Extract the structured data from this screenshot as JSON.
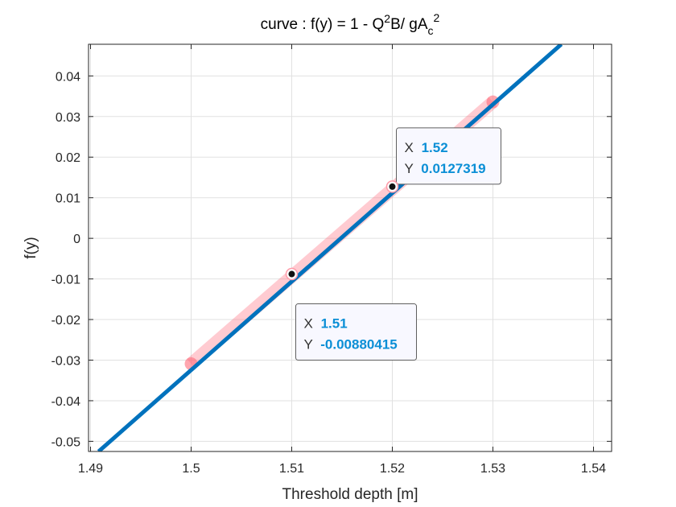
{
  "chart_data": {
    "type": "line",
    "title": {
      "prefix": "curve : f(y) = 1 - Q",
      "sup1": "2",
      "middle": "B/ gA",
      "sub": "c",
      "sup2": "2"
    },
    "xlabel": "Threshold depth [m]",
    "ylabel": "f(y)",
    "xlim": [
      1.4898,
      1.5418
    ],
    "ylim": [
      -0.0525,
      0.0478
    ],
    "xticks": [
      1.49,
      1.5,
      1.51,
      1.52,
      1.53,
      1.54
    ],
    "xtick_labels": [
      "1.49",
      "1.5",
      "1.51",
      "1.52",
      "1.53",
      "1.54"
    ],
    "yticks": [
      -0.05,
      -0.04,
      -0.03,
      -0.02,
      -0.01,
      0,
      0.01,
      0.02,
      0.03,
      0.04
    ],
    "ytick_labels": [
      "-0.05",
      "-0.04",
      "-0.03",
      "-0.02",
      "-0.01",
      "0",
      "0.01",
      "0.02",
      "0.03",
      "0.04"
    ],
    "grid": true,
    "series": [
      {
        "x": [
          1.4908,
          1.5368
        ],
        "y": [
          -0.0525,
          0.0478
        ],
        "color": "#0072bd"
      }
    ],
    "highlight_segment": {
      "x": [
        1.5,
        1.53
      ],
      "y": [
        -0.0309,
        0.0336
      ],
      "color": "#ff6b7a"
    },
    "highlight_points": [
      {
        "x": 1.5,
        "y": -0.0309
      },
      {
        "x": 1.53,
        "y": 0.0336
      }
    ],
    "datatips": [
      {
        "x_key": "X",
        "x_value": "1.52",
        "y_key": "Y",
        "y_value": "0.0127319",
        "px": 1.52,
        "py": 0.0127319
      },
      {
        "x_key": "X",
        "x_value": "1.51",
        "y_key": "Y",
        "y_value": "-0.00880415",
        "px": 1.51,
        "py": -0.00880415
      }
    ]
  }
}
